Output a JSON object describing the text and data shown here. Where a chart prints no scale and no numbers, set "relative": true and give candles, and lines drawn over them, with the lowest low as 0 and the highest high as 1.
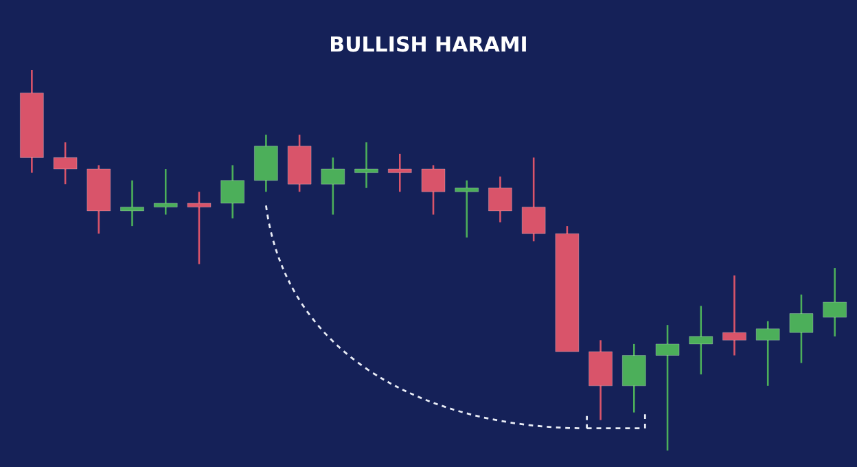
{
  "chart_data": {
    "type": "candlestick",
    "title": "BULLISH HARAMI",
    "relative": true,
    "categories": [
      null,
      null,
      null,
      null,
      null,
      null,
      null,
      null,
      null,
      null,
      null,
      null,
      null,
      null,
      null,
      null,
      null,
      null,
      null,
      null,
      null,
      null,
      null,
      null,
      null
    ],
    "ohlc": [
      [
        0.94,
        1,
        0.73,
        0.77
      ],
      [
        0.77,
        0.81,
        0.7,
        0.74
      ],
      [
        0.74,
        0.75,
        0.57,
        0.63
      ],
      [
        0.63,
        0.71,
        0.59,
        0.64
      ],
      [
        0.64,
        0.74,
        0.62,
        0.65
      ],
      [
        0.65,
        0.68,
        0.49,
        0.64
      ],
      [
        0.65,
        0.75,
        0.61,
        0.71
      ],
      [
        0.71,
        0.83,
        0.68,
        0.8
      ],
      [
        0.8,
        0.83,
        0.68,
        0.7
      ],
      [
        0.7,
        0.77,
        0.62,
        0.74
      ],
      [
        0.73,
        0.81,
        0.69,
        0.74
      ],
      [
        0.74,
        0.78,
        0.68,
        0.73
      ],
      [
        0.74,
        0.75,
        0.62,
        0.68
      ],
      [
        0.68,
        0.71,
        0.56,
        0.69
      ],
      [
        0.69,
        0.72,
        0.6,
        0.63
      ],
      [
        0.64,
        0.77,
        0.55,
        0.57
      ],
      [
        0.57,
        0.59,
        0.26,
        0.26
      ],
      [
        0.26,
        0.29,
        0.08,
        0.17
      ],
      [
        0.17,
        0.28,
        0.1,
        0.25
      ],
      [
        0.25,
        0.33,
        0,
        0.28
      ],
      [
        0.28,
        0.38,
        0.2,
        0.3
      ],
      [
        0.31,
        0.46,
        0.25,
        0.29
      ],
      [
        0.29,
        0.34,
        0.17,
        0.32
      ],
      [
        0.31,
        0.41,
        0.23,
        0.36
      ],
      [
        0.35,
        0.48,
        0.3,
        0.39
      ]
    ],
    "colors": [
      "#d9546a",
      "#d9546a",
      "#d9546a",
      "#4caf5a",
      "#4caf5a",
      "#d9546a",
      "#4caf5a",
      "#4caf5a",
      "#d9546a",
      "#4caf5a",
      "#4caf5a",
      "#d9546a",
      "#d9546a",
      "#4caf5a",
      "#d9546a",
      "#d9546a",
      "#d9546a",
      "#d9546a",
      "#4caf5a",
      "#4caf5a",
      "#4caf5a",
      "#d9546a",
      "#4caf5a",
      "#4caf5a",
      "#4caf5a"
    ]
  }
}
